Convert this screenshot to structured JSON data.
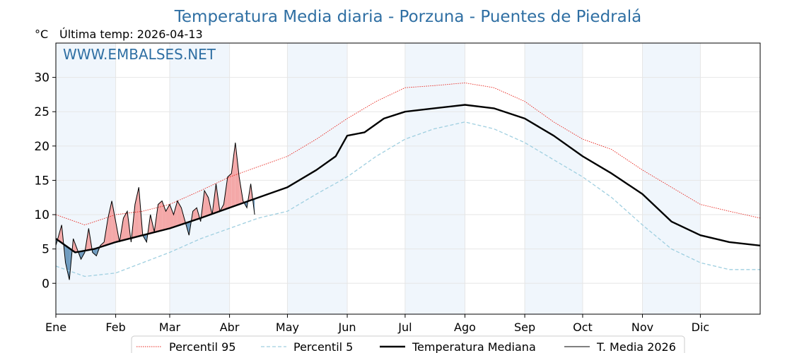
{
  "chart_data": {
    "type": "line",
    "title": "Temperatura Media diaria - Porzuna -  Puentes de Piedralá",
    "unit": "°C",
    "subtitle": "Última temp: 2026-04-13",
    "watermark": "WWW.EMBALSES.NET",
    "ylim": [
      -4.5,
      35
    ],
    "yticks": [
      0,
      5,
      10,
      15,
      20,
      25,
      30
    ],
    "xlim": [
      0,
      365
    ],
    "x_ticks": [
      {
        "label": "Ene",
        "day": 0
      },
      {
        "label": "Feb",
        "day": 31
      },
      {
        "label": "Mar",
        "day": 59
      },
      {
        "label": "Abr",
        "day": 90
      },
      {
        "label": "May",
        "day": 120
      },
      {
        "label": "Jun",
        "day": 151
      },
      {
        "label": "Jul",
        "day": 181
      },
      {
        "label": "Ago",
        "day": 212
      },
      {
        "label": "Sep",
        "day": 243
      },
      {
        "label": "Oct",
        "day": 273
      },
      {
        "label": "Nov",
        "day": 304
      },
      {
        "label": "Dic",
        "day": 334
      }
    ],
    "grid": true,
    "legend_position": "bottom",
    "colors": {
      "p95": "#e8261e",
      "p5": "#9fcfe0",
      "median": "#000000",
      "current": "#000000",
      "above_fill": "#f4a8a8",
      "below_fill": "#6f9cc0",
      "month_shade": "#f0f6fc",
      "title": "#2f6fa3"
    },
    "series": [
      {
        "name": "Percentil 95",
        "style": "dotted-red",
        "x": [
          0,
          15,
          31,
          45,
          59,
          75,
          90,
          105,
          120,
          135,
          151,
          166,
          181,
          196,
          212,
          227,
          243,
          258,
          273,
          288,
          304,
          319,
          334,
          349,
          365
        ],
        "values": [
          10.0,
          8.5,
          10.0,
          10.5,
          11.5,
          13.5,
          15.5,
          17.0,
          18.5,
          21.0,
          24.0,
          26.5,
          28.5,
          28.8,
          29.2,
          28.5,
          26.5,
          23.5,
          21.0,
          19.5,
          16.5,
          14.0,
          11.5,
          10.5,
          9.5
        ]
      },
      {
        "name": "Percentil 5",
        "style": "dashed-lightblue",
        "x": [
          0,
          15,
          31,
          45,
          59,
          75,
          90,
          105,
          120,
          135,
          151,
          166,
          181,
          196,
          212,
          227,
          243,
          258,
          273,
          288,
          304,
          319,
          334,
          349,
          365
        ],
        "values": [
          2.5,
          1.0,
          1.5,
          3.0,
          4.5,
          6.5,
          8.0,
          9.5,
          10.5,
          13.0,
          15.5,
          18.5,
          21.0,
          22.5,
          23.5,
          22.5,
          20.5,
          18.0,
          15.5,
          12.5,
          8.5,
          5.0,
          3.0,
          2.0,
          2.0
        ]
      },
      {
        "name": "Temperatura Mediana",
        "style": "thick-black",
        "x": [
          0,
          10,
          20,
          31,
          45,
          59,
          75,
          90,
          105,
          120,
          135,
          145,
          151,
          160,
          170,
          181,
          196,
          212,
          227,
          243,
          258,
          273,
          288,
          304,
          319,
          334,
          349,
          365
        ],
        "values": [
          6.5,
          4.5,
          5.0,
          6.0,
          7.0,
          8.0,
          9.5,
          11.0,
          12.5,
          14.0,
          16.5,
          18.5,
          21.5,
          22.0,
          24.0,
          25.0,
          25.5,
          26.0,
          25.5,
          24.0,
          21.5,
          18.5,
          16.0,
          13.0,
          9.0,
          7.0,
          6.0,
          5.5
        ]
      },
      {
        "name": "T. Media 2026",
        "style": "thin-black",
        "x": [
          0,
          3,
          5,
          7,
          9,
          11,
          13,
          15,
          17,
          19,
          21,
          23,
          25,
          27,
          29,
          31,
          33,
          35,
          37,
          39,
          41,
          43,
          45,
          47,
          49,
          51,
          53,
          55,
          57,
          59,
          61,
          63,
          65,
          67,
          69,
          71,
          73,
          75,
          77,
          79,
          81,
          83,
          85,
          87,
          89,
          91,
          93,
          95,
          97,
          99,
          101,
          103
        ],
        "values": [
          5.5,
          8.5,
          3.0,
          0.5,
          6.5,
          5.0,
          3.5,
          4.5,
          8.0,
          4.5,
          4.0,
          5.5,
          6.0,
          9.5,
          12.0,
          9.0,
          6.0,
          9.5,
          10.5,
          6.0,
          11.5,
          14.0,
          7.0,
          6.0,
          10.0,
          7.5,
          11.5,
          12.0,
          10.5,
          11.5,
          10.0,
          12.0,
          11.0,
          9.0,
          7.0,
          10.5,
          11.0,
          9.0,
          13.5,
          12.5,
          10.0,
          14.5,
          10.5,
          11.5,
          15.5,
          16.0,
          20.5,
          15.5,
          12.0,
          11.0,
          14.5,
          10.0
        ]
      }
    ]
  }
}
